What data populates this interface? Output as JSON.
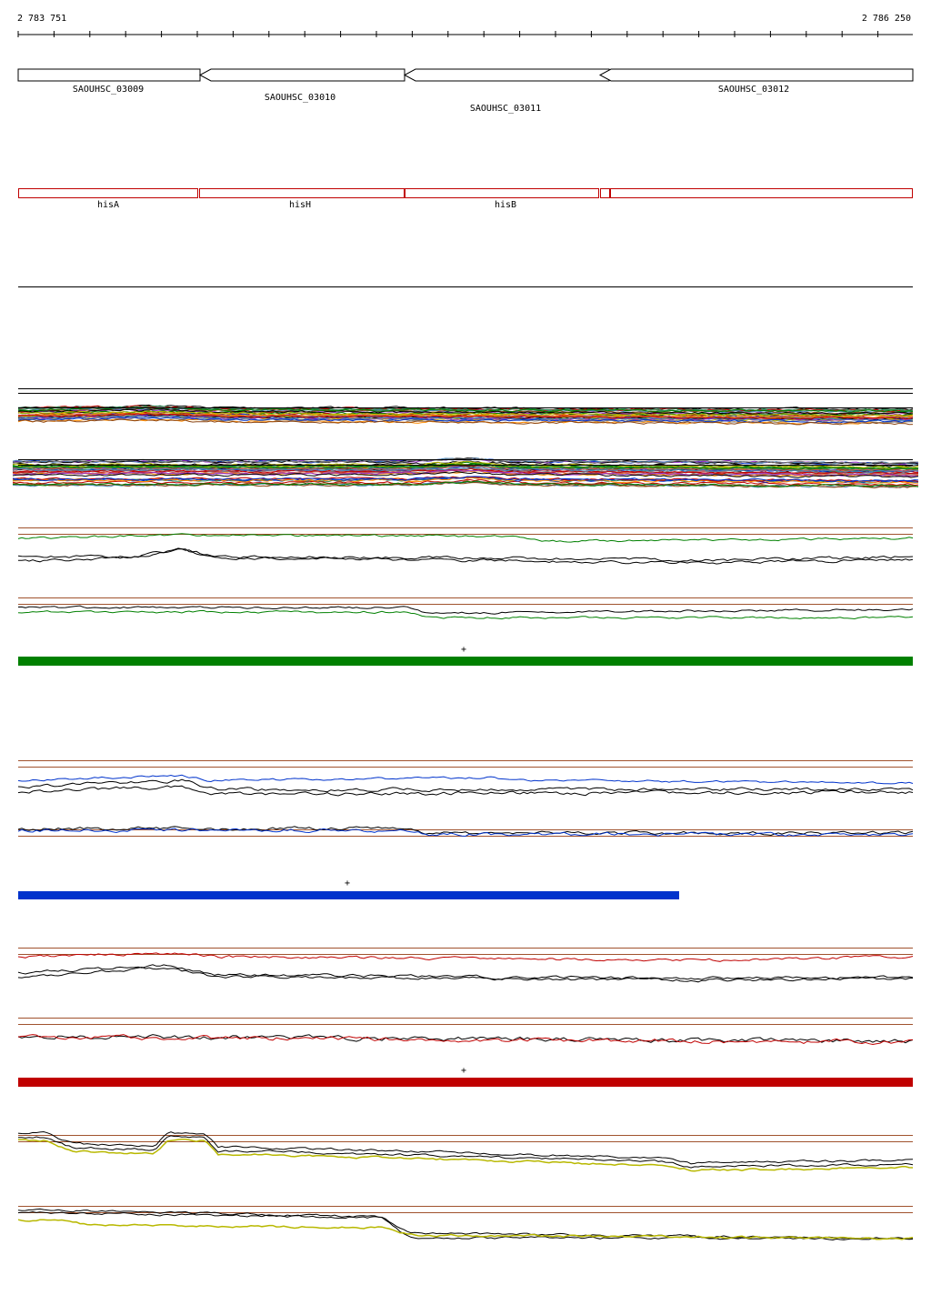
{
  "ruler": {
    "start": "2 783 751",
    "end": "2 786 250"
  },
  "genes": [
    {
      "label": "SAOUHSC_03009"
    },
    {
      "label": "SAOUHSC_03010"
    },
    {
      "label": "SAOUHSC_03011"
    },
    {
      "label": "SAOUHSC_03012"
    }
  ],
  "features": [
    {
      "label": "hisA"
    },
    {
      "label": "hisH"
    },
    {
      "label": "hisB"
    }
  ],
  "strand_markers": [
    "+",
    "+",
    "+"
  ]
}
